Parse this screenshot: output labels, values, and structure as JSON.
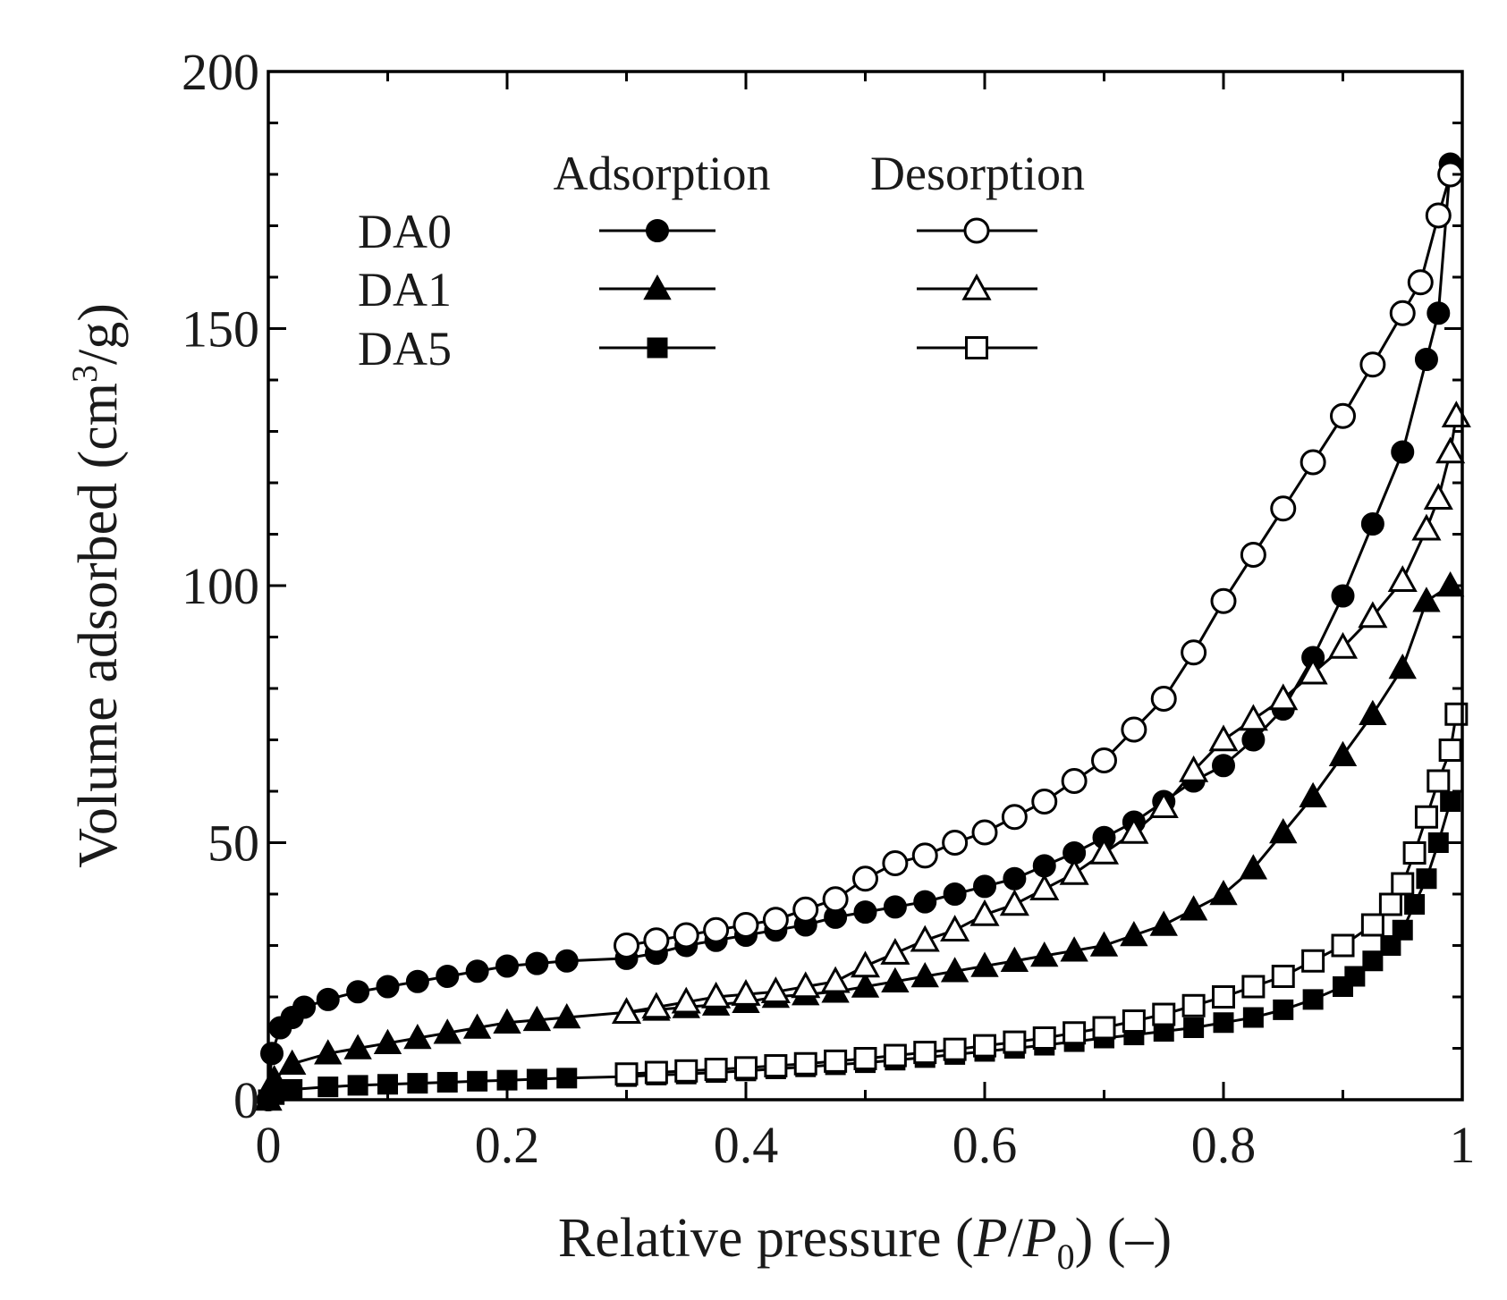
{
  "chart_data": {
    "type": "scatter",
    "title": "",
    "xlabel": {
      "prefix": "Relative pressure (",
      "v1": "P",
      "slash": "/",
      "v2": "P",
      "sub": "0",
      "suffix": ") (–)"
    },
    "ylabel": {
      "prefix": "Volume adsorbed (cm",
      "sup": "3",
      "suffix": "/g)"
    },
    "xlim": [
      0,
      1
    ],
    "ylim": [
      0,
      200
    ],
    "xticks": [
      0,
      0.2,
      0.4,
      0.6,
      0.8,
      1
    ],
    "xtick_labels": [
      "0",
      "0.2",
      "0.4",
      "0.6",
      "0.8",
      "1"
    ],
    "yticks": [
      0,
      50,
      100,
      150,
      200
    ],
    "ytick_labels": [
      "0",
      "50",
      "100",
      "150",
      "200"
    ],
    "legend": {
      "position": "top-left",
      "column_headers": [
        "Adsorption",
        "Desorption"
      ],
      "rows": [
        "DA0",
        "DA1",
        "DA5"
      ]
    },
    "series": [
      {
        "name": "DA0",
        "branch": "Adsorption",
        "marker": "circle",
        "filled": true,
        "x": [
          0,
          0.003,
          0.01,
          0.02,
          0.03,
          0.05,
          0.075,
          0.1,
          0.125,
          0.15,
          0.175,
          0.2,
          0.225,
          0.25,
          0.3,
          0.325,
          0.35,
          0.375,
          0.4,
          0.425,
          0.45,
          0.475,
          0.5,
          0.525,
          0.55,
          0.575,
          0.6,
          0.625,
          0.65,
          0.675,
          0.7,
          0.725,
          0.75,
          0.775,
          0.8,
          0.825,
          0.85,
          0.875,
          0.9,
          0.925,
          0.95,
          0.97,
          0.98,
          0.99
        ],
        "y": [
          0,
          9,
          14,
          16,
          18,
          19.5,
          21,
          22,
          23,
          24,
          25,
          26,
          26.5,
          27,
          27.5,
          28.5,
          30,
          31,
          32,
          33,
          34,
          35.5,
          36.5,
          37.5,
          38.5,
          40,
          41.5,
          43,
          45.5,
          48,
          51,
          54,
          58,
          62,
          65,
          70,
          76,
          86,
          98,
          112,
          126,
          144,
          153,
          182
        ]
      },
      {
        "name": "DA0",
        "branch": "Desorption",
        "marker": "circle",
        "filled": false,
        "x": [
          0.3,
          0.325,
          0.35,
          0.375,
          0.4,
          0.425,
          0.45,
          0.475,
          0.5,
          0.525,
          0.55,
          0.575,
          0.6,
          0.625,
          0.65,
          0.675,
          0.7,
          0.725,
          0.75,
          0.775,
          0.8,
          0.825,
          0.85,
          0.875,
          0.9,
          0.925,
          0.95,
          0.965,
          0.98,
          0.99
        ],
        "y": [
          30,
          31,
          32,
          33,
          34,
          35,
          37,
          39,
          43,
          46,
          47.5,
          50,
          52,
          55,
          58,
          62,
          66,
          72,
          78,
          87,
          97,
          106,
          115,
          124,
          133,
          143,
          153,
          159,
          172,
          180
        ]
      },
      {
        "name": "DA1",
        "branch": "Adsorption",
        "marker": "triangle",
        "filled": true,
        "x": [
          0,
          0.005,
          0.02,
          0.05,
          0.075,
          0.1,
          0.125,
          0.15,
          0.175,
          0.2,
          0.225,
          0.25,
          0.3,
          0.325,
          0.35,
          0.375,
          0.4,
          0.425,
          0.45,
          0.475,
          0.5,
          0.525,
          0.55,
          0.575,
          0.6,
          0.625,
          0.65,
          0.675,
          0.7,
          0.725,
          0.75,
          0.775,
          0.8,
          0.825,
          0.85,
          0.875,
          0.9,
          0.925,
          0.95,
          0.97,
          0.99
        ],
        "y": [
          0,
          4,
          7,
          9,
          10,
          11,
          12,
          13,
          14,
          15,
          15.5,
          16,
          17,
          17.5,
          18,
          18.5,
          19,
          20,
          20.5,
          21,
          22,
          23,
          24,
          25,
          26,
          27,
          28,
          29,
          30,
          32,
          34,
          37,
          40,
          45,
          52,
          59,
          67,
          75,
          84,
          97,
          100
        ]
      },
      {
        "name": "DA1",
        "branch": "Desorption",
        "marker": "triangle",
        "filled": false,
        "x": [
          0.3,
          0.325,
          0.35,
          0.375,
          0.4,
          0.425,
          0.45,
          0.475,
          0.5,
          0.525,
          0.55,
          0.575,
          0.6,
          0.625,
          0.65,
          0.675,
          0.7,
          0.725,
          0.75,
          0.775,
          0.8,
          0.825,
          0.85,
          0.875,
          0.9,
          0.925,
          0.95,
          0.97,
          0.98,
          0.99,
          0.995
        ],
        "y": [
          17,
          18,
          19,
          20,
          20.5,
          21,
          22,
          23,
          26,
          28.5,
          31,
          33,
          36,
          38,
          41,
          44,
          48,
          52,
          57,
          64,
          70,
          74,
          78,
          83,
          88,
          94,
          101,
          111,
          117,
          126,
          133
        ]
      },
      {
        "name": "DA5",
        "branch": "Adsorption",
        "marker": "square",
        "filled": true,
        "x": [
          0,
          0.005,
          0.02,
          0.05,
          0.075,
          0.1,
          0.125,
          0.15,
          0.175,
          0.2,
          0.225,
          0.25,
          0.3,
          0.325,
          0.35,
          0.375,
          0.4,
          0.425,
          0.45,
          0.475,
          0.5,
          0.525,
          0.55,
          0.575,
          0.6,
          0.625,
          0.65,
          0.675,
          0.7,
          0.725,
          0.75,
          0.775,
          0.8,
          0.825,
          0.85,
          0.875,
          0.9,
          0.91,
          0.925,
          0.94,
          0.95,
          0.96,
          0.97,
          0.98,
          0.99
        ],
        "y": [
          0,
          1,
          2,
          2.5,
          2.8,
          3,
          3.2,
          3.4,
          3.6,
          3.8,
          4,
          4.2,
          4.5,
          4.8,
          5,
          5.3,
          5.6,
          6,
          6.4,
          6.8,
          7.2,
          7.7,
          8.2,
          8.8,
          9.4,
          10,
          10.6,
          11.3,
          12,
          12.6,
          13.3,
          14,
          15,
          16,
          17.5,
          19.5,
          22,
          24,
          27,
          30,
          33,
          38,
          43,
          50,
          58
        ]
      },
      {
        "name": "DA5",
        "branch": "Desorption",
        "marker": "square",
        "filled": false,
        "x": [
          0.3,
          0.325,
          0.35,
          0.375,
          0.4,
          0.425,
          0.45,
          0.475,
          0.5,
          0.525,
          0.55,
          0.575,
          0.6,
          0.625,
          0.65,
          0.675,
          0.7,
          0.725,
          0.75,
          0.775,
          0.8,
          0.825,
          0.85,
          0.875,
          0.9,
          0.925,
          0.94,
          0.95,
          0.96,
          0.97,
          0.98,
          0.99,
          0.995
        ],
        "y": [
          5,
          5.3,
          5.6,
          5.9,
          6.2,
          6.6,
          7,
          7.5,
          8,
          8.6,
          9.2,
          9.8,
          10.5,
          11.2,
          12,
          13,
          14,
          15.3,
          16.6,
          18.3,
          20,
          22,
          24,
          27,
          30,
          34,
          38,
          42,
          48,
          55,
          62,
          68,
          75
        ]
      }
    ]
  }
}
